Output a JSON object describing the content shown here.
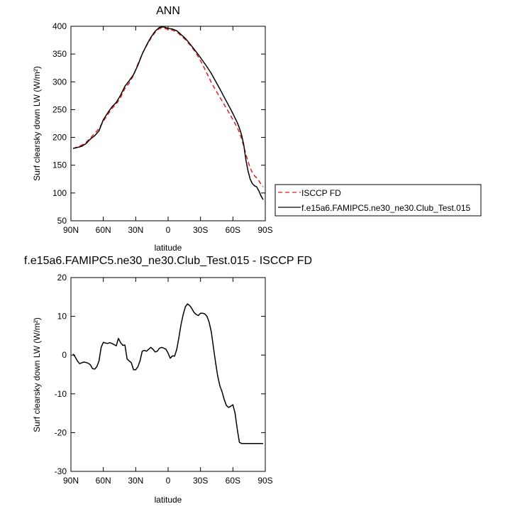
{
  "chart_data": [
    {
      "type": "line",
      "title": "ANN",
      "xlabel": "latitude",
      "ylabel": "Surf clearsky down LW (W/m²)",
      "xlim": [
        90,
        -90
      ],
      "ylim": [
        50,
        400
      ],
      "x_ticks": [
        90,
        60,
        30,
        0,
        -30,
        -60,
        -90
      ],
      "x_tick_labels": [
        "90N",
        "60N",
        "30N",
        "0",
        "30S",
        "60S",
        "90S"
      ],
      "y_ticks": [
        50,
        100,
        150,
        200,
        250,
        300,
        350,
        400
      ],
      "y_tick_labels": [
        "50",
        "100",
        "150",
        "200",
        "250",
        "300",
        "350",
        "400"
      ],
      "legend_position": "right",
      "series": [
        {
          "name": "ISCCP FD",
          "color": "#e31a1c",
          "dash": "dashed",
          "x": [
            88,
            84,
            80,
            76,
            72,
            68,
            64,
            60,
            56,
            52,
            48,
            44,
            40,
            36,
            32,
            28,
            24,
            20,
            16,
            12,
            8,
            4,
            0,
            -4,
            -8,
            -12,
            -16,
            -20,
            -24,
            -28,
            -32,
            -36,
            -40,
            -44,
            -48,
            -52,
            -56,
            -60,
            -64,
            -66,
            -68,
            -70,
            -72,
            -74,
            -76,
            -78,
            -80,
            -82,
            -84,
            -86,
            -88
          ],
          "y": [
            180,
            183,
            186,
            191,
            199,
            207,
            216,
            229,
            241,
            252,
            260,
            272,
            288,
            298,
            312,
            332,
            350,
            365,
            378,
            389,
            396,
            397,
            394,
            393,
            390,
            383,
            376,
            367,
            357,
            345,
            331,
            315,
            299,
            285,
            272,
            259,
            246,
            232,
            218,
            209,
            198,
            184,
            170,
            157,
            145,
            137,
            131,
            127,
            122,
            116,
            111
          ]
        },
        {
          "name": "f.e15a6.FAMIPC5.ne30_ne30.Club_Test.015",
          "color": "#000000",
          "dash": "solid",
          "x": [
            88,
            84,
            80,
            76,
            72,
            68,
            64,
            60,
            56,
            52,
            48,
            44,
            40,
            36,
            32,
            28,
            24,
            20,
            16,
            12,
            8,
            4,
            0,
            -4,
            -8,
            -12,
            -16,
            -20,
            -24,
            -28,
            -32,
            -36,
            -40,
            -44,
            -48,
            -52,
            -56,
            -60,
            -64,
            -66,
            -68,
            -70,
            -72,
            -74,
            -76,
            -78,
            -80,
            -82,
            -84,
            -86,
            -88
          ],
          "y": [
            180,
            182,
            184,
            189,
            197,
            203,
            212,
            232,
            244,
            255,
            263,
            276,
            292,
            302,
            313,
            330,
            350,
            366,
            380,
            391,
            398,
            399,
            396,
            395,
            392,
            385,
            378,
            369,
            359,
            349,
            338,
            327,
            315,
            301,
            287,
            272,
            258,
            243,
            227,
            217,
            205,
            187,
            160,
            140,
            125,
            117,
            113,
            111,
            104,
            95,
            88
          ]
        }
      ]
    },
    {
      "type": "line",
      "title": "f.e15a6.FAMIPC5.ne30_ne30.Club_Test.015 - ISCCP FD",
      "xlabel": "latitude",
      "ylabel": "Surf clearsky down LW (W/m²)",
      "xlim": [
        90,
        -90
      ],
      "ylim": [
        -30,
        20
      ],
      "x_ticks": [
        90,
        60,
        30,
        0,
        -30,
        -60,
        -90
      ],
      "x_tick_labels": [
        "90N",
        "60N",
        "30N",
        "0",
        "30S",
        "60S",
        "90S"
      ],
      "y_ticks": [
        -30,
        -20,
        -10,
        0,
        10,
        20
      ],
      "y_tick_labels": [
        "-30",
        "-20",
        "-10",
        "0",
        "10",
        "20"
      ],
      "series": [
        {
          "color": "#000000",
          "dash": "solid",
          "x": [
            88,
            86,
            84,
            82,
            80,
            78,
            76,
            74,
            72,
            70,
            68,
            66,
            64,
            62,
            60,
            58,
            56,
            54,
            52,
            50,
            48,
            46,
            44,
            42,
            40,
            38,
            36,
            34,
            32,
            30,
            28,
            26,
            24,
            22,
            20,
            18,
            16,
            14,
            12,
            10,
            8,
            6,
            4,
            2,
            0,
            -2,
            -4,
            -6,
            -8,
            -10,
            -12,
            -14,
            -16,
            -18,
            -20,
            -22,
            -24,
            -26,
            -28,
            -30,
            -32,
            -34,
            -36,
            -38,
            -40,
            -42,
            -44,
            -46,
            -48,
            -50,
            -52,
            -54,
            -56,
            -58,
            -60,
            -62,
            -64,
            -66,
            -68,
            -70,
            -72,
            -74,
            -76,
            -78,
            -80,
            -82,
            -84,
            -86,
            -88
          ],
          "y": [
            0.3,
            -0.5,
            -1.5,
            -2.2,
            -2.0,
            -1.8,
            -1.9,
            -2.1,
            -2.5,
            -3.5,
            -3.6,
            -3.0,
            -1.5,
            2.0,
            3.3,
            3.1,
            3.0,
            3.2,
            3.0,
            2.7,
            2.4,
            4.3,
            3.2,
            2.5,
            2.6,
            -1.0,
            -1.5,
            -2.0,
            -3.8,
            -3.8,
            -3.0,
            -1.5,
            1.0,
            1.2,
            1.0,
            1.5,
            2.0,
            1.5,
            0.8,
            1.0,
            1.8,
            2.0,
            1.8,
            1.5,
            0.5,
            -0.8,
            -0.2,
            -0.3,
            1.5,
            4.5,
            8.0,
            10.5,
            12.5,
            13.2,
            12.8,
            12.0,
            11.0,
            10.5,
            10.2,
            10.8,
            10.8,
            10.6,
            10.0,
            8.5,
            6.0,
            2.0,
            -2.0,
            -5.5,
            -8.0,
            -9.5,
            -11.5,
            -13.0,
            -13.5,
            -13.2,
            -12.8,
            -15.0,
            -19.0,
            -22.5,
            -22.8,
            -22.8,
            -22.8,
            -22.8,
            -22.8,
            -22.8,
            -22.8,
            -22.8,
            -22.8,
            -22.8,
            -22.8
          ]
        }
      ]
    }
  ]
}
